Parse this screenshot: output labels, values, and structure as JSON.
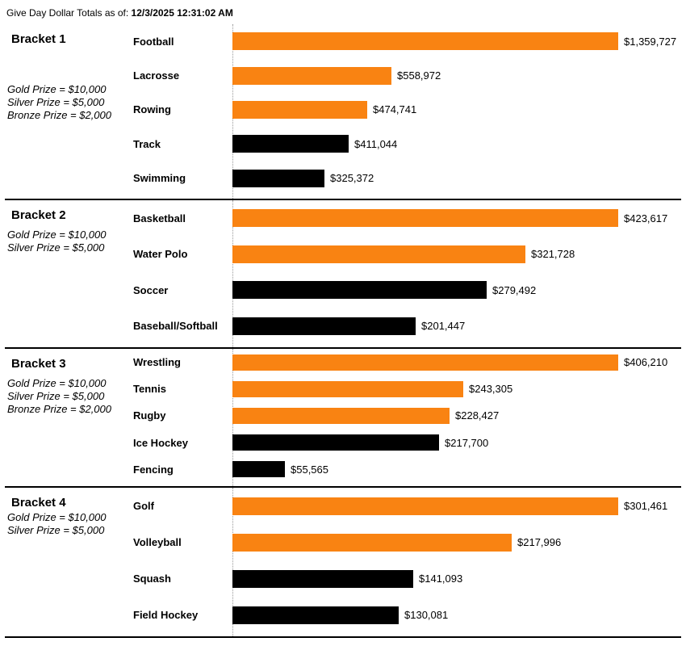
{
  "header": {
    "title_prefix": "Give Day Dollar Totals as of:",
    "timestamp": "12/3/2025 12:31:02 AM"
  },
  "chart_data": {
    "type": "bar",
    "orientation": "horizontal",
    "title": "Give Day Dollar Totals",
    "unit": "USD",
    "axis_note": "each bracket scaled independently to its max value",
    "colors": {
      "orange": "#F98312",
      "black": "#000000"
    },
    "brackets": [
      {
        "name": "Bracket 1",
        "prizes": [
          "Gold Prize = $10,000",
          "Silver Prize = $5,000",
          "Bronze Prize = $2,000"
        ],
        "bars": [
          {
            "label": "Football",
            "value": 1359727,
            "display": "$1,359,727",
            "color": "orange"
          },
          {
            "label": "Lacrosse",
            "value": 558972,
            "display": "$558,972",
            "color": "orange"
          },
          {
            "label": "Rowing",
            "value": 474741,
            "display": "$474,741",
            "color": "orange"
          },
          {
            "label": "Track",
            "value": 411044,
            "display": "$411,044",
            "color": "black"
          },
          {
            "label": "Swimming",
            "value": 325372,
            "display": "$325,372",
            "color": "black"
          }
        ]
      },
      {
        "name": "Bracket 2",
        "prizes": [
          "Gold Prize = $10,000",
          "Silver Prize = $5,000"
        ],
        "bars": [
          {
            "label": "Basketball",
            "value": 423617,
            "display": "$423,617",
            "color": "orange"
          },
          {
            "label": "Water Polo",
            "value": 321728,
            "display": "$321,728",
            "color": "orange"
          },
          {
            "label": "Soccer",
            "value": 279492,
            "display": "$279,492",
            "color": "black"
          },
          {
            "label": "Baseball/Softball",
            "value": 201447,
            "display": "$201,447",
            "color": "black"
          }
        ]
      },
      {
        "name": "Bracket 3",
        "prizes": [
          "Gold Prize = $10,000",
          "Silver Prize = $5,000",
          "Bronze Prize = $2,000"
        ],
        "bars": [
          {
            "label": "Wrestling",
            "value": 406210,
            "display": "$406,210",
            "color": "orange"
          },
          {
            "label": "Tennis",
            "value": 243305,
            "display": "$243,305",
            "color": "orange"
          },
          {
            "label": "Rugby",
            "value": 228427,
            "display": "$228,427",
            "color": "orange"
          },
          {
            "label": "Ice Hockey",
            "value": 217700,
            "display": "$217,700",
            "color": "black"
          },
          {
            "label": "Fencing",
            "value": 55565,
            "display": "$55,565",
            "color": "black"
          }
        ]
      },
      {
        "name": "Bracket 4",
        "prizes": [
          "Gold Prize = $10,000",
          "Silver Prize = $5,000"
        ],
        "bars": [
          {
            "label": "Golf",
            "value": 301461,
            "display": "$301,461",
            "color": "orange"
          },
          {
            "label": "Volleyball",
            "value": 217996,
            "display": "$217,996",
            "color": "orange"
          },
          {
            "label": "Squash",
            "value": 141093,
            "display": "$141,093",
            "color": "black"
          },
          {
            "label": "Field Hockey",
            "value": 130081,
            "display": "$130,081",
            "color": "black"
          }
        ]
      }
    ]
  }
}
